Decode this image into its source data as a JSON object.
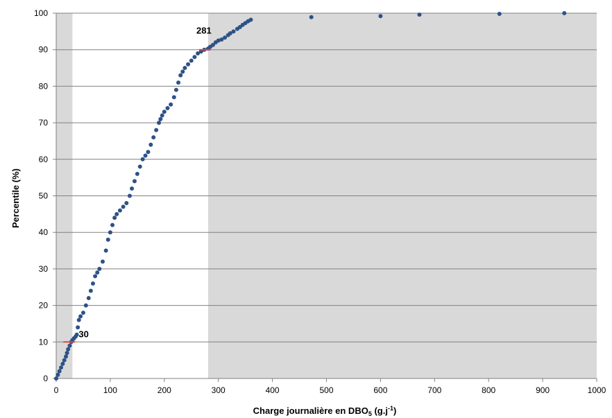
{
  "chart_data": {
    "type": "scatter",
    "xlabel": "Charge journalière en DBO",
    "xlabel_sub": "5",
    "xlabel_unit_prefix": " (g.j",
    "xlabel_unit_sup": "-1",
    "xlabel_unit_suffix": ")",
    "ylabel": "Percentile (%)",
    "xlim": [
      0,
      1000
    ],
    "ylim": [
      0,
      100
    ],
    "xticks": [
      0,
      100,
      200,
      300,
      400,
      500,
      600,
      700,
      800,
      900,
      1000
    ],
    "yticks": [
      0,
      10,
      20,
      30,
      40,
      50,
      60,
      70,
      80,
      90,
      100
    ],
    "grid": "horizontal",
    "shaded_ranges_x": [
      [
        0,
        30
      ],
      [
        281,
        1000
      ]
    ],
    "marker_color": "#2e5287",
    "background_plot": "#ffffff",
    "shade_color": "#d9d9d9",
    "annotations": [
      {
        "text": "30",
        "x": 30,
        "y": 10,
        "color": "#e0463a"
      },
      {
        "text": "281",
        "x": 281,
        "y": 90,
        "color": "#e0463a"
      }
    ],
    "x": [
      0,
      3,
      6,
      9,
      12,
      15,
      18,
      20,
      22,
      25,
      28,
      30,
      33,
      36,
      38,
      40,
      42,
      45,
      50,
      55,
      60,
      64,
      68,
      72,
      76,
      80,
      86,
      92,
      96,
      100,
      104,
      108,
      112,
      118,
      124,
      130,
      136,
      140,
      145,
      150,
      155,
      160,
      165,
      170,
      175,
      180,
      185,
      190,
      193,
      196,
      200,
      206,
      212,
      218,
      222,
      226,
      230,
      234,
      238,
      244,
      250,
      256,
      262,
      268,
      274,
      281,
      285,
      290,
      295,
      300,
      306,
      312,
      318,
      322,
      328,
      335,
      340,
      345,
      350,
      355,
      360,
      472,
      600,
      672,
      820,
      940
    ],
    "y": [
      0,
      1,
      2,
      3,
      4,
      5,
      6,
      7,
      8,
      9,
      10,
      10.5,
      11,
      11.5,
      12,
      14,
      16,
      17,
      18,
      20,
      22,
      24,
      26,
      28,
      29,
      30,
      32,
      35,
      38,
      40,
      42,
      44,
      45,
      46,
      47,
      48,
      50,
      52,
      54,
      56,
      58,
      60,
      61,
      62,
      64,
      66,
      68,
      70,
      71,
      72,
      73,
      74,
      75,
      77,
      79,
      81,
      83,
      84,
      85,
      86,
      87,
      88,
      89,
      89.5,
      90,
      90.3,
      90.8,
      91.3,
      92,
      92.5,
      92.8,
      93.3,
      94,
      94.5,
      95,
      95.7,
      96.2,
      96.8,
      97.3,
      97.8,
      98.2,
      98.9,
      99.2,
      99.6,
      99.8,
      100
    ]
  }
}
